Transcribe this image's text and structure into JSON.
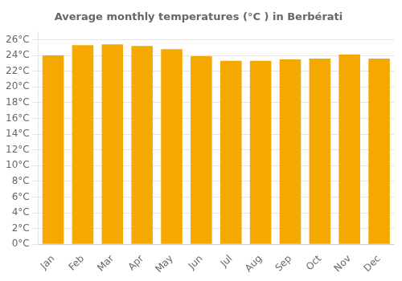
{
  "chart_data": {
    "type": "bar",
    "title": "Average monthly temperatures (°C ) in Berbérati",
    "categories": [
      "Jan",
      "Feb",
      "Mar",
      "Apr",
      "May",
      "Jun",
      "Jul",
      "Aug",
      "Sep",
      "Oct",
      "Nov",
      "Dec"
    ],
    "values": [
      24.0,
      25.3,
      25.4,
      25.2,
      24.8,
      23.9,
      23.3,
      23.3,
      23.5,
      23.6,
      24.1,
      23.6
    ],
    "color": "#F5A800",
    "ylim": [
      0,
      27
    ],
    "yticks": [
      {
        "value": 0,
        "label": "0°C"
      },
      {
        "value": 2,
        "label": "2°C"
      },
      {
        "value": 4,
        "label": "4°C"
      },
      {
        "value": 6,
        "label": "6°C"
      },
      {
        "value": 8,
        "label": "8°C"
      },
      {
        "value": 10,
        "label": "10°C"
      },
      {
        "value": 12,
        "label": "12°C"
      },
      {
        "value": 14,
        "label": "14°C"
      },
      {
        "value": 16,
        "label": "16°C"
      },
      {
        "value": 18,
        "label": "18°C"
      },
      {
        "value": 20,
        "label": "20°C"
      },
      {
        "value": 22,
        "label": "22°C"
      },
      {
        "value": 24,
        "label": "24°C"
      },
      {
        "value": 26,
        "label": "26°C"
      }
    ],
    "grid": true
  }
}
